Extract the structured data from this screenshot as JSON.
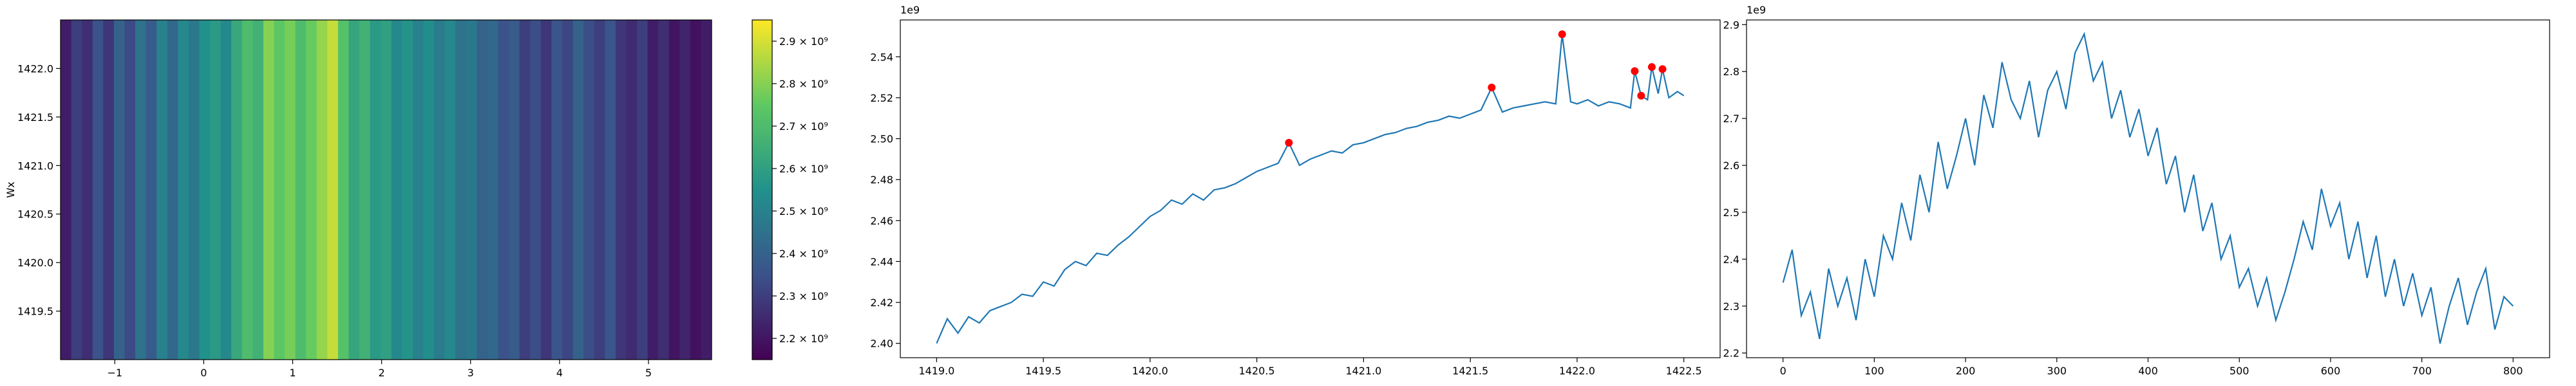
{
  "chart_data": [
    {
      "type": "heatmap",
      "ylabel": "Wx",
      "colormap": "viridis",
      "x": [
        -1.55,
        -1.43,
        -1.31,
        -1.19,
        -1.07,
        -0.95,
        -0.83,
        -0.71,
        -0.59,
        -0.47,
        -0.35,
        -0.23,
        -0.11,
        0.01,
        0.13,
        0.25,
        0.37,
        0.49,
        0.61,
        0.73,
        0.85,
        0.97,
        1.09,
        1.21,
        1.33,
        1.45,
        1.57,
        1.69,
        1.81,
        1.93,
        2.05,
        2.17,
        2.29,
        2.41,
        2.53,
        2.65,
        2.77,
        2.89,
        3.01,
        3.13,
        3.25,
        3.37,
        3.49,
        3.61,
        3.73,
        3.85,
        3.97,
        4.09,
        4.21,
        4.33,
        4.45,
        4.57,
        4.69,
        4.81,
        4.93,
        5.05,
        5.17,
        5.29,
        5.41,
        5.53,
        5.65
      ],
      "values": [
        2220000000.0,
        2300000000.0,
        2260000000.0,
        2350000000.0,
        2280000000.0,
        2400000000.0,
        2330000000.0,
        2450000000.0,
        2380000000.0,
        2500000000.0,
        2420000000.0,
        2520000000.0,
        2470000000.0,
        2550000000.0,
        2580000000.0,
        2520000000.0,
        2630000000.0,
        2700000000.0,
        2660000000.0,
        2800000000.0,
        2740000000.0,
        2780000000.0,
        2700000000.0,
        2760000000.0,
        2820000000.0,
        2880000000.0,
        2720000000.0,
        2620000000.0,
        2660000000.0,
        2580000000.0,
        2600000000.0,
        2520000000.0,
        2560000000.0,
        2500000000.0,
        2540000000.0,
        2480000000.0,
        2520000000.0,
        2450000000.0,
        2470000000.0,
        2400000000.0,
        2420000000.0,
        2350000000.0,
        2380000000.0,
        2300000000.0,
        2340000000.0,
        2280000000.0,
        2360000000.0,
        2320000000.0,
        2400000000.0,
        2340000000.0,
        2300000000.0,
        2360000000.0,
        2280000000.0,
        2250000000.0,
        2300000000.0,
        2220000000.0,
        2260000000.0,
        2200000000.0,
        2240000000.0,
        2190000000.0,
        2220000000.0
      ],
      "xlim": [
        -1.61,
        5.71
      ],
      "ylim": [
        1419.0,
        1422.5
      ],
      "xticks": [
        {
          "value": -1,
          "label": "−1"
        },
        0,
        1,
        2,
        3,
        4,
        5
      ],
      "yticks": [
        {
          "value": 1419.5,
          "label": "1419.5"
        },
        {
          "value": 1420.0,
          "label": "1420.0"
        },
        {
          "value": 1420.5,
          "label": "1420.5"
        },
        {
          "value": 1421.0,
          "label": "1421.0"
        },
        {
          "value": 1421.5,
          "label": "1421.5"
        },
        {
          "value": 1422.0,
          "label": "1422.0"
        }
      ],
      "colorbar": {
        "lim": [
          2150000000.0,
          2950000000.0
        ],
        "ticks": [
          {
            "value": 2200000000.0,
            "label": "2.2 × 10⁹"
          },
          {
            "value": 2300000000.0,
            "label": "2.3 × 10⁹"
          },
          {
            "value": 2400000000.0,
            "label": "2.4 × 10⁹"
          },
          {
            "value": 2500000000.0,
            "label": "2.5 × 10⁹"
          },
          {
            "value": 2600000000.0,
            "label": "2.6 × 10⁹"
          },
          {
            "value": 2700000000.0,
            "label": "2.7 × 10⁹"
          },
          {
            "value": 2800000000.0,
            "label": "2.8 × 10⁹"
          },
          {
            "value": 2900000000.0,
            "label": "2.9 × 10⁹"
          }
        ]
      }
    },
    {
      "type": "line",
      "offset_label": "1e9",
      "color": "#1f77b4",
      "x": [
        1419.0,
        1419.05,
        1419.1,
        1419.15,
        1419.2,
        1419.25,
        1419.3,
        1419.35,
        1419.4,
        1419.45,
        1419.5,
        1419.55,
        1419.6,
        1419.65,
        1419.7,
        1419.75,
        1419.8,
        1419.85,
        1419.9,
        1419.95,
        1420.0,
        1420.05,
        1420.1,
        1420.15,
        1420.2,
        1420.25,
        1420.3,
        1420.35,
        1420.4,
        1420.45,
        1420.5,
        1420.55,
        1420.6,
        1420.65,
        1420.7,
        1420.75,
        1420.8,
        1420.85,
        1420.9,
        1420.95,
        1421.0,
        1421.05,
        1421.1,
        1421.15,
        1421.2,
        1421.25,
        1421.3,
        1421.35,
        1421.4,
        1421.45,
        1421.5,
        1421.55,
        1421.6,
        1421.65,
        1421.7,
        1421.75,
        1421.8,
        1421.85,
        1421.9,
        1421.93,
        1421.97,
        1422.0,
        1422.05,
        1422.1,
        1422.15,
        1422.2,
        1422.25,
        1422.27,
        1422.3,
        1422.33,
        1422.35,
        1422.38,
        1422.4,
        1422.43,
        1422.47,
        1422.5
      ],
      "values": [
        2.4,
        2.412,
        2.405,
        2.413,
        2.41,
        2.416,
        2.418,
        2.42,
        2.424,
        2.423,
        2.43,
        2.428,
        2.436,
        2.44,
        2.438,
        2.444,
        2.443,
        2.448,
        2.452,
        2.457,
        2.462,
        2.465,
        2.47,
        2.468,
        2.473,
        2.47,
        2.475,
        2.476,
        2.478,
        2.481,
        2.484,
        2.486,
        2.488,
        2.498,
        2.487,
        2.49,
        2.492,
        2.494,
        2.493,
        2.497,
        2.498,
        2.5,
        2.502,
        2.503,
        2.505,
        2.506,
        2.508,
        2.509,
        2.511,
        2.51,
        2.512,
        2.514,
        2.525,
        2.513,
        2.515,
        2.516,
        2.517,
        2.518,
        2.517,
        2.551,
        2.518,
        2.517,
        2.519,
        2.516,
        2.518,
        2.517,
        2.515,
        2.533,
        2.521,
        2.519,
        2.535,
        2.522,
        2.534,
        2.52,
        2.523,
        2.521
      ],
      "peaks": {
        "color": "red",
        "x": [
          1420.65,
          1421.6,
          1421.93,
          1422.27,
          1422.3,
          1422.35,
          1422.4
        ],
        "values": [
          2.498,
          2.525,
          2.551,
          2.533,
          2.521,
          2.535,
          2.534
        ]
      },
      "xlim": [
        1418.83,
        1422.67
      ],
      "ylim": [
        2.393,
        2.558
      ],
      "xticks": [
        {
          "value": 1419.0,
          "label": "1419.0"
        },
        {
          "value": 1419.5,
          "label": "1419.5"
        },
        {
          "value": 1420.0,
          "label": "1420.0"
        },
        {
          "value": 1420.5,
          "label": "1420.5"
        },
        {
          "value": 1421.0,
          "label": "1421.0"
        },
        {
          "value": 1421.5,
          "label": "1421.5"
        },
        {
          "value": 1422.0,
          "label": "1422.0"
        },
        {
          "value": 1422.5,
          "label": "1422.5"
        }
      ],
      "yticks": [
        {
          "value": 2.4,
          "label": "2.40"
        },
        {
          "value": 2.42,
          "label": "2.42"
        },
        {
          "value": 2.44,
          "label": "2.44"
        },
        {
          "value": 2.46,
          "label": "2.46"
        },
        {
          "value": 2.48,
          "label": "2.48"
        },
        {
          "value": 2.5,
          "label": "2.50"
        },
        {
          "value": 2.52,
          "label": "2.52"
        },
        {
          "value": 2.54,
          "label": "2.54"
        }
      ]
    },
    {
      "type": "line",
      "offset_label": "1e9",
      "color": "#1f77b4",
      "x": [
        0,
        10,
        20,
        30,
        40,
        50,
        60,
        70,
        80,
        90,
        100,
        110,
        120,
        130,
        140,
        150,
        160,
        170,
        180,
        190,
        200,
        210,
        220,
        230,
        240,
        250,
        260,
        270,
        280,
        290,
        300,
        310,
        320,
        330,
        340,
        350,
        360,
        370,
        380,
        390,
        400,
        410,
        420,
        430,
        440,
        450,
        460,
        470,
        480,
        490,
        500,
        510,
        520,
        530,
        540,
        550,
        560,
        570,
        580,
        590,
        600,
        610,
        620,
        630,
        640,
        650,
        660,
        670,
        680,
        690,
        700,
        710,
        720,
        730,
        740,
        750,
        760,
        770,
        780,
        790,
        800
      ],
      "values": [
        2.35,
        2.42,
        2.28,
        2.33,
        2.23,
        2.38,
        2.3,
        2.36,
        2.27,
        2.4,
        2.32,
        2.45,
        2.4,
        2.52,
        2.44,
        2.58,
        2.5,
        2.65,
        2.55,
        2.62,
        2.7,
        2.6,
        2.75,
        2.68,
        2.82,
        2.74,
        2.7,
        2.78,
        2.66,
        2.76,
        2.8,
        2.72,
        2.84,
        2.88,
        2.78,
        2.82,
        2.7,
        2.76,
        2.66,
        2.72,
        2.62,
        2.68,
        2.56,
        2.62,
        2.5,
        2.58,
        2.46,
        2.52,
        2.4,
        2.45,
        2.34,
        2.38,
        2.3,
        2.36,
        2.27,
        2.33,
        2.4,
        2.48,
        2.42,
        2.55,
        2.47,
        2.52,
        2.4,
        2.48,
        2.36,
        2.45,
        2.32,
        2.4,
        2.3,
        2.37,
        2.28,
        2.34,
        2.22,
        2.3,
        2.36,
        2.26,
        2.33,
        2.38,
        2.25,
        2.32,
        2.3
      ],
      "xlim": [
        -40,
        840
      ],
      "ylim": [
        2.19,
        2.91
      ],
      "xticks": [
        0,
        100,
        200,
        300,
        400,
        500,
        600,
        700,
        800
      ],
      "yticks": [
        2.2,
        2.3,
        2.4,
        2.5,
        2.6,
        2.7,
        2.8,
        2.9
      ]
    }
  ]
}
